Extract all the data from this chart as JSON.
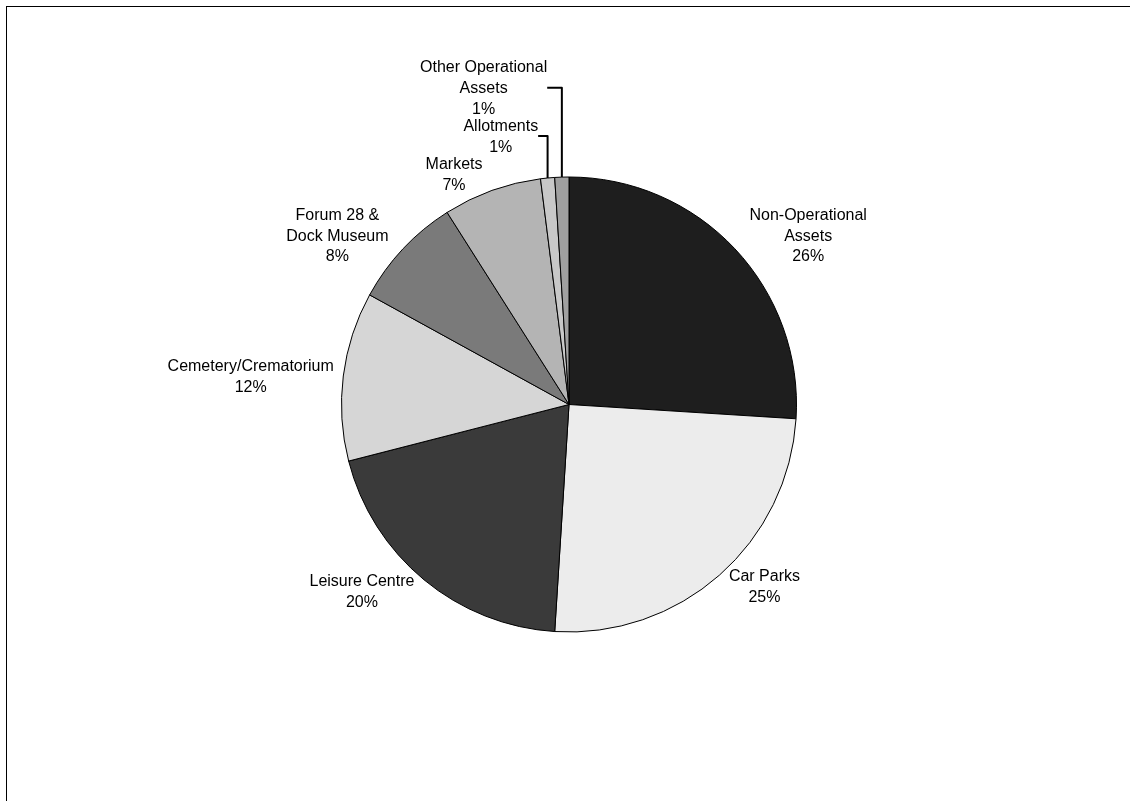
{
  "chart_data": {
    "type": "pie",
    "categories": [
      "Non-Operational Assets",
      "Car Parks",
      "Leisure Centre",
      "Cemetery/Crematorium",
      "Forum 28 & Dock Museum",
      "Markets",
      "Allotments",
      "Other Operational Assets"
    ],
    "values": [
      26,
      25,
      20,
      12,
      8,
      7,
      1,
      1
    ],
    "value_labels": [
      "26%",
      "25%",
      "20%",
      "12%",
      "8%",
      "7%",
      "1%",
      "1%"
    ],
    "colors": [
      "#1e1e1e",
      "#ececec",
      "#3a3a3a",
      "#d6d6d6",
      "#7a7a7a",
      "#b4b4b4",
      "#c8c8c8",
      "#a0a0a0"
    ],
    "legend": false
  }
}
